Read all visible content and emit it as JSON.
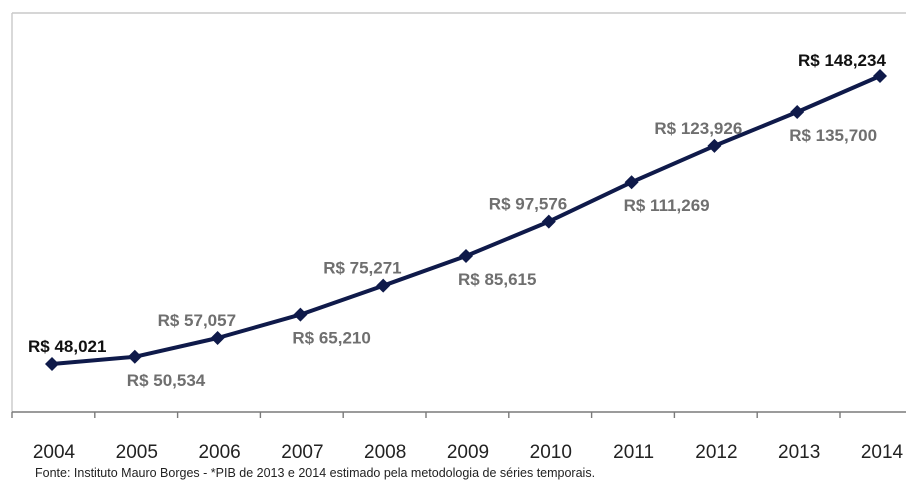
{
  "chart_data": {
    "type": "line",
    "categories": [
      "2004",
      "2005",
      "2006",
      "2007",
      "2008",
      "2009",
      "2010",
      "2011",
      "2012",
      "2013",
      "2014"
    ],
    "series": [
      {
        "values": [
          48.021,
          50.534,
          57.057,
          65.21,
          75.271,
          85.615,
          97.576,
          111.269,
          123.926,
          135.7,
          148.234
        ]
      }
    ],
    "data_labels": [
      "R$ 48,021",
      "R$ 50,534",
      "R$ 57,057",
      "R$ 65,210",
      "R$ 75,271",
      "R$ 85,615",
      "R$ 97,576",
      "R$ 111,269",
      "R$ 123,926",
      "R$ 135,700",
      "R$ 148,234"
    ],
    "emphasized_labels": [
      "R$ 48,021",
      "R$ 148,234"
    ],
    "line_color": "#0f1a4a",
    "label_color": "#6f6f6f",
    "grid": false,
    "legend": "none"
  },
  "source_note": "Fonte: Instituto Mauro Borges - *PIB de 2013 e 2014 estimado pela metodologia de séries temporais."
}
